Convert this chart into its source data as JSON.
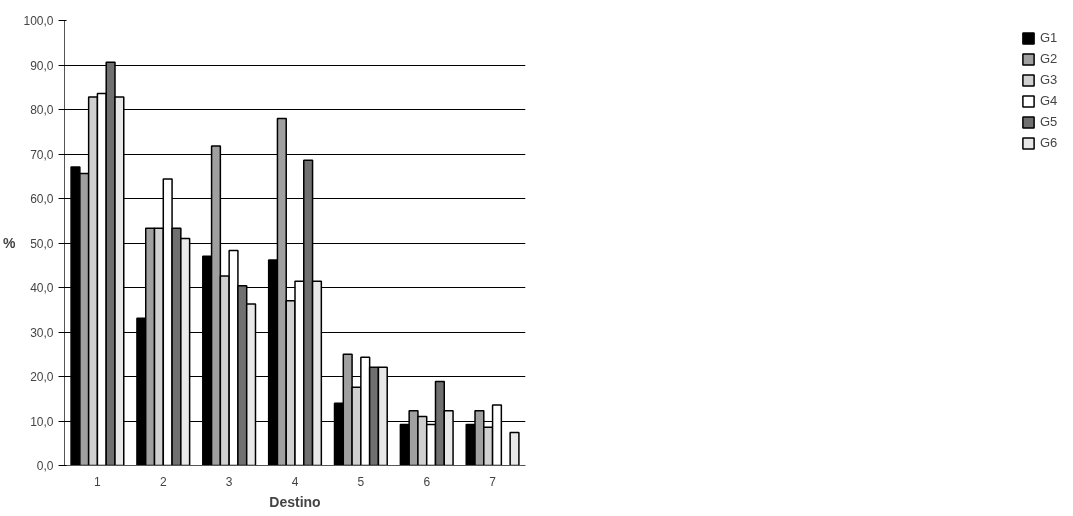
{
  "chart_data": {
    "type": "bar",
    "xlabel": "Destino",
    "ylabel": "%",
    "categories": [
      "1",
      "2",
      "3",
      "4",
      "5",
      "6",
      "7"
    ],
    "series": [
      {
        "name": "G1",
        "color": "#000000",
        "values": [
          67.1,
          33.1,
          47.0,
          46.2,
          14.0,
          9.2,
          9.2
        ]
      },
      {
        "name": "G2",
        "color": "#a0a0a0",
        "values": [
          65.6,
          53.3,
          71.8,
          78.0,
          25.0,
          12.3,
          12.3
        ]
      },
      {
        "name": "G3",
        "color": "#d0d0d0",
        "values": [
          82.8,
          53.3,
          42.6,
          37.0,
          17.6,
          11.0,
          8.6
        ]
      },
      {
        "name": "G4",
        "color": "#ffffff",
        "values": [
          83.6,
          64.4,
          48.3,
          41.4,
          24.3,
          9.2,
          13.6
        ]
      },
      {
        "name": "G5",
        "color": "#707070",
        "values": [
          90.6,
          53.3,
          40.4,
          68.6,
          22.1,
          18.9,
          null
        ]
      },
      {
        "name": "G6",
        "color": "#e8e8e8",
        "values": [
          82.8,
          51.0,
          36.3,
          41.4,
          22.1,
          12.3,
          7.4
        ]
      }
    ],
    "ylim": [
      0,
      100
    ],
    "yticks": [
      {
        "value": 0,
        "label": "0,0"
      },
      {
        "value": 10,
        "label": "10,0"
      },
      {
        "value": 20,
        "label": "20,0"
      },
      {
        "value": 30,
        "label": "30,0"
      },
      {
        "value": 40,
        "label": "40,0"
      },
      {
        "value": 50,
        "label": "50,0"
      },
      {
        "value": 60,
        "label": "60,0"
      },
      {
        "value": 70,
        "label": "70,0"
      },
      {
        "value": 80,
        "label": "80,0"
      },
      {
        "value": 90,
        "label": "90,0"
      },
      {
        "value": 100,
        "label": "100,0"
      }
    ],
    "grid": "y",
    "legend": "right"
  }
}
